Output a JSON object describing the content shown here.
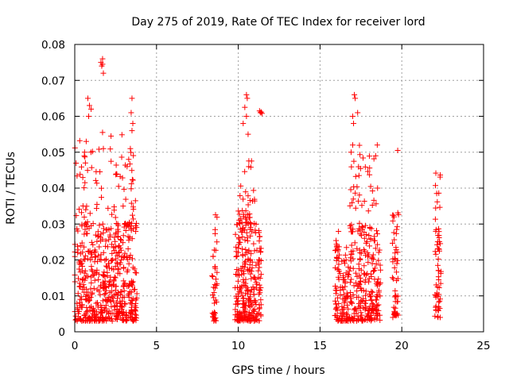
{
  "chart_data": {
    "type": "scatter",
    "title": "Day 275 of 2019, Rate Of TEC Index for receiver lord",
    "xlabel": "GPS time / hours",
    "ylabel": "ROTI / TECUs",
    "xlim": [
      0,
      25
    ],
    "ylim": [
      0,
      0.08
    ],
    "xticks": [
      0,
      5,
      10,
      15,
      20,
      25
    ],
    "xtick_labels": [
      "0",
      "5",
      "10",
      "15",
      "20",
      "25"
    ],
    "yticks": [
      0,
      0.01,
      0.02,
      0.03,
      0.04,
      0.05,
      0.06,
      0.07,
      0.08
    ],
    "ytick_labels": [
      "0",
      "0.01",
      "0.02",
      "0.03",
      "0.04",
      "0.05",
      "0.06",
      "0.07",
      "0.08"
    ],
    "grid": true,
    "marker": "+",
    "color": "#ff0000",
    "clusters": [
      {
        "x_range": [
          0.0,
          3.8
        ],
        "y_range": [
          0.003,
          0.03
        ],
        "count": 520
      },
      {
        "x_range": [
          0.0,
          3.8
        ],
        "y_range": [
          0.03,
          0.055
        ],
        "count": 80
      },
      {
        "x_range": [
          8.4,
          8.7
        ],
        "y_range": [
          0.003,
          0.037
        ],
        "count": 40
      },
      {
        "x_range": [
          9.8,
          11.4
        ],
        "y_range": [
          0.003,
          0.03
        ],
        "count": 260
      },
      {
        "x_range": [
          10.0,
          11.0
        ],
        "y_range": [
          0.03,
          0.048
        ],
        "count": 40
      },
      {
        "x_range": [
          15.9,
          18.7
        ],
        "y_range": [
          0.003,
          0.028
        ],
        "count": 330
      },
      {
        "x_range": [
          16.8,
          18.6
        ],
        "y_range": [
          0.028,
          0.052
        ],
        "count": 50
      },
      {
        "x_range": [
          19.4,
          19.8
        ],
        "y_range": [
          0.004,
          0.034
        ],
        "count": 50
      },
      {
        "x_range": [
          22.0,
          22.4
        ],
        "y_range": [
          0.004,
          0.045
        ],
        "count": 60
      }
    ],
    "points": [
      [
        1.6,
        0.075
      ],
      [
        1.7,
        0.076
      ],
      [
        1.65,
        0.074
      ],
      [
        1.75,
        0.072
      ],
      [
        1.7,
        0.0745
      ],
      [
        0.8,
        0.065
      ],
      [
        0.9,
        0.063
      ],
      [
        0.85,
        0.06
      ],
      [
        1.0,
        0.062
      ],
      [
        3.5,
        0.065
      ],
      [
        3.45,
        0.061
      ],
      [
        3.55,
        0.058
      ],
      [
        3.5,
        0.056
      ],
      [
        1.7,
        0.0555
      ],
      [
        1.75,
        0.051
      ],
      [
        0.7,
        0.053
      ],
      [
        0.6,
        0.05
      ],
      [
        0.65,
        0.047
      ],
      [
        3.4,
        0.051
      ],
      [
        3.3,
        0.048
      ],
      [
        3.2,
        0.046
      ],
      [
        10.5,
        0.066
      ],
      [
        10.55,
        0.065
      ],
      [
        10.4,
        0.0625
      ],
      [
        10.5,
        0.06
      ],
      [
        10.3,
        0.058
      ],
      [
        10.6,
        0.055
      ],
      [
        11.3,
        0.0615
      ],
      [
        11.35,
        0.061
      ],
      [
        11.4,
        0.0612
      ],
      [
        11.45,
        0.0608
      ],
      [
        17.1,
        0.066
      ],
      [
        17.15,
        0.065
      ],
      [
        17.3,
        0.061
      ],
      [
        17.0,
        0.06
      ],
      [
        17.05,
        0.058
      ],
      [
        19.75,
        0.0505
      ],
      [
        18.5,
        0.052
      ],
      [
        18.4,
        0.049
      ],
      [
        17.0,
        0.052
      ],
      [
        16.9,
        0.05
      ]
    ]
  }
}
